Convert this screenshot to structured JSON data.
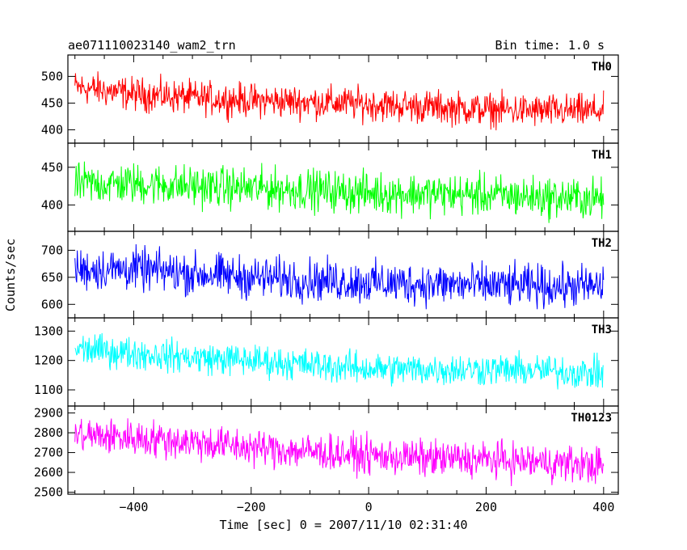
{
  "header": {
    "title": "ae071110023140_wam2_trn",
    "bin_time": "Bin time: 1.0 s"
  },
  "chart_data": {
    "type": "line",
    "title": "ae071110023140_wam2_trn",
    "subtitle": "Bin time: 1.0 s",
    "xlabel": "Time [sec] 0 = 2007/11/10 02:31:40",
    "ylabel": "Counts/sec",
    "xlim": [
      -512,
      425
    ],
    "x_ticks": [
      -400,
      -200,
      0,
      200,
      400
    ],
    "x_range": [
      -500,
      400
    ],
    "x_step": 1,
    "grid": false,
    "panels": [
      {
        "name": "TH0",
        "color": "#ff0000",
        "ylim": [
          375,
          540
        ],
        "y_ticks": [
          400,
          450,
          500
        ],
        "trend": [
          [
            -500,
            480
          ],
          [
            -400,
            467
          ],
          [
            -300,
            460
          ],
          [
            -200,
            455
          ],
          [
            -100,
            452
          ],
          [
            0,
            448
          ],
          [
            100,
            443
          ],
          [
            200,
            438
          ],
          [
            300,
            435
          ],
          [
            400,
            435
          ]
        ],
        "noise_halfwidth": 40
      },
      {
        "name": "TH1",
        "color": "#00ff00",
        "ylim": [
          365,
          482
        ],
        "y_ticks": [
          400,
          450
        ],
        "trend": [
          [
            -500,
            428
          ],
          [
            -400,
            428
          ],
          [
            -300,
            425
          ],
          [
            -200,
            422
          ],
          [
            -100,
            420
          ],
          [
            0,
            416
          ],
          [
            100,
            415
          ],
          [
            200,
            413
          ],
          [
            300,
            410
          ],
          [
            400,
            408
          ]
        ],
        "noise_halfwidth": 35
      },
      {
        "name": "TH2",
        "color": "#0000ff",
        "ylim": [
          575,
          735
        ],
        "y_ticks": [
          600,
          650,
          700
        ],
        "trend": [
          [
            -500,
            665
          ],
          [
            -400,
            665
          ],
          [
            -300,
            657
          ],
          [
            -200,
            650
          ],
          [
            -100,
            645
          ],
          [
            0,
            640
          ],
          [
            100,
            638
          ],
          [
            200,
            635
          ],
          [
            300,
            633
          ],
          [
            400,
            633
          ]
        ],
        "noise_halfwidth": 50
      },
      {
        "name": "TH3",
        "color": "#00ffff",
        "ylim": [
          1045,
          1345
        ],
        "y_ticks": [
          1100,
          1200,
          1300
        ],
        "trend": [
          [
            -500,
            1240
          ],
          [
            -400,
            1225
          ],
          [
            -300,
            1210
          ],
          [
            -200,
            1200
          ],
          [
            -100,
            1185
          ],
          [
            0,
            1172
          ],
          [
            100,
            1170
          ],
          [
            200,
            1170
          ],
          [
            300,
            1165
          ],
          [
            400,
            1155
          ]
        ],
        "noise_halfwidth": 70
      },
      {
        "name": "TH0123",
        "color": "#ff00ff",
        "ylim": [
          2490,
          2935
        ],
        "y_ticks": [
          2500,
          2600,
          2700,
          2800,
          2900
        ],
        "trend": [
          [
            -500,
            2790
          ],
          [
            -400,
            2775
          ],
          [
            -300,
            2755
          ],
          [
            -200,
            2725
          ],
          [
            -100,
            2705
          ],
          [
            0,
            2685
          ],
          [
            100,
            2670
          ],
          [
            200,
            2665
          ],
          [
            300,
            2650
          ],
          [
            400,
            2635
          ]
        ],
        "noise_halfwidth": 120
      }
    ]
  }
}
